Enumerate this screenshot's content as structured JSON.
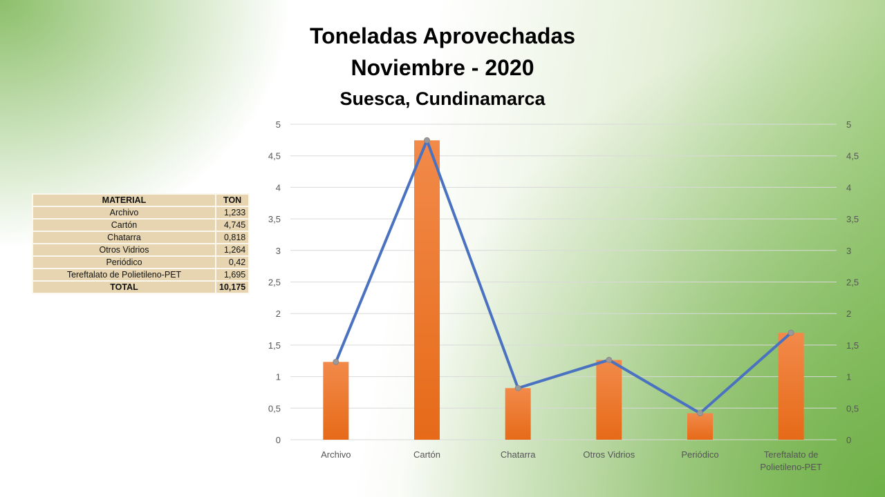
{
  "chart_data": {
    "type": "bar",
    "title": "Toneladas Aprovechadas",
    "subtitle": "Noviembre - 2020",
    "subtitle2": "Suesca, Cundinamarca",
    "categories": [
      "Archivo",
      "Cartón",
      "Chatarra",
      "Otros Vidrios",
      "Periódico",
      "Tereftalato de Polietileno-PET"
    ],
    "category_lines": [
      [
        "Archivo"
      ],
      [
        "Cartón"
      ],
      [
        "Chatarra"
      ],
      [
        "Otros Vidrios"
      ],
      [
        "Periódico"
      ],
      [
        "Tereftalato de",
        "Polietileno-PET"
      ]
    ],
    "series": [
      {
        "name": "TON (barras)",
        "type": "bar",
        "values": [
          1.233,
          4.745,
          0.818,
          1.264,
          0.42,
          1.695
        ]
      },
      {
        "name": "TON (línea)",
        "type": "line",
        "values": [
          1.233,
          4.745,
          0.818,
          1.264,
          0.42,
          1.695
        ]
      }
    ],
    "ylim": [
      0,
      5
    ],
    "yticks": [
      "0",
      "0,5",
      "1",
      "1,5",
      "2",
      "2,5",
      "3",
      "3,5",
      "4",
      "4,5",
      "5"
    ],
    "secondary_ylim": [
      0,
      5
    ],
    "grid": true,
    "colors": {
      "bar": "#ee7a2e",
      "line": "#4a72c0",
      "marker": "#9a9a9a"
    }
  },
  "table": {
    "headers": [
      "MATERIAL",
      "TON"
    ],
    "rows": [
      [
        "Archivo",
        "1,233"
      ],
      [
        "Cartón",
        "4,745"
      ],
      [
        "Chatarra",
        "0,818"
      ],
      [
        "Otros Vidrios",
        "1,264"
      ],
      [
        "Periódico",
        "0,42"
      ],
      [
        "Tereftalato de Polietileno-PET",
        "1,695"
      ]
    ],
    "total": [
      "TOTAL",
      "10,175"
    ]
  }
}
